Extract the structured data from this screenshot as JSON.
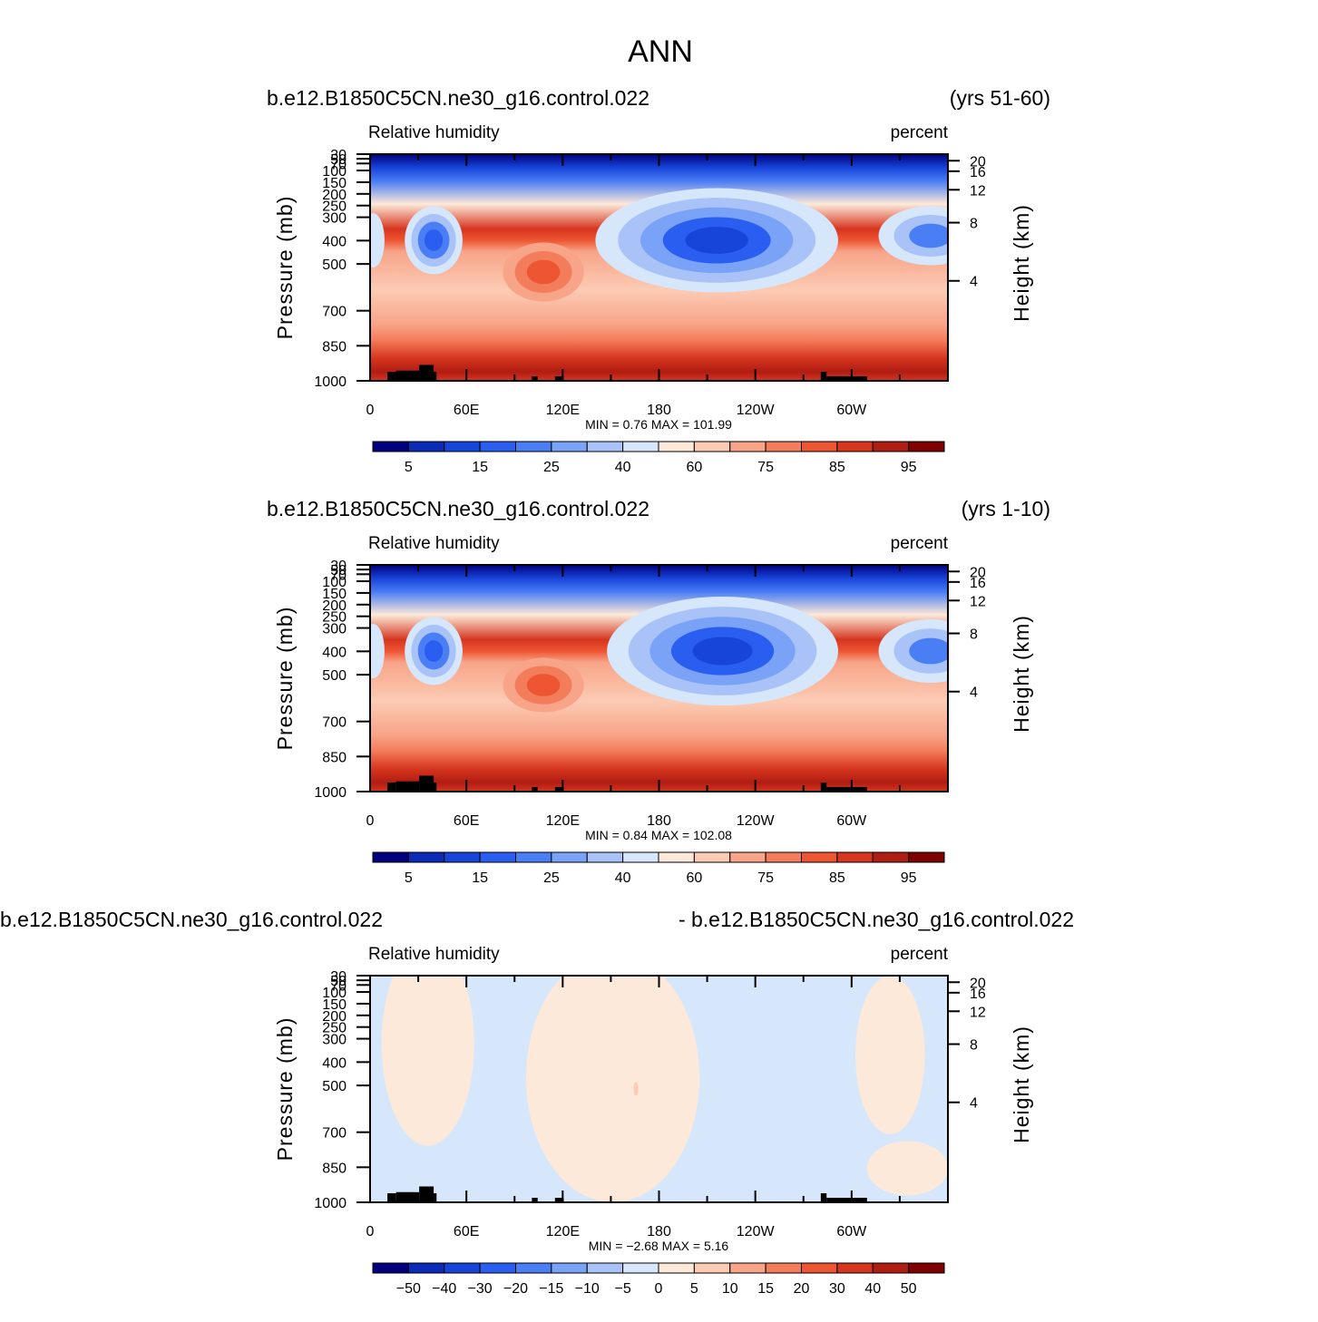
{
  "page_title": "ANN",
  "chart_data": [
    {
      "type": "heatmap",
      "case_title": "b.e12.B1850C5CN.ne30_g16.control.022",
      "period": "(yrs 51-60)",
      "variable_label": "Relative humidity",
      "units_label": "percent",
      "ylabel": "Pressure (mb)",
      "ylabel_right": "Height (km)",
      "x_ticks": [
        "0",
        "60E",
        "120E",
        "180",
        "120W",
        "60W"
      ],
      "y_ticks": [
        "30",
        "50",
        "70",
        "100",
        "150",
        "200",
        "250",
        "300",
        "400",
        "500",
        "700",
        "850",
        "1000"
      ],
      "right_ticks": [
        "20",
        "16",
        "12",
        "8",
        "4"
      ],
      "stats_text": "MIN =    0.76   MAX =  101.99",
      "min": 0.76,
      "max": 101.99,
      "colorbar_labels": [
        "5",
        "15",
        "25",
        "40",
        "60",
        "75",
        "85",
        "95"
      ],
      "colors": [
        "#00007f",
        "#0a2ab8",
        "#1744d9",
        "#2a5ef0",
        "#4a7ef5",
        "#7aa2f6",
        "#a9c3f8",
        "#d6e7fb",
        "#fde9d9",
        "#fccbb4",
        "#f7a488",
        "#f37d5b",
        "#ee5532",
        "#d6351e",
        "#b01d12",
        "#7f0000"
      ],
      "gradient_stops": [
        [
          "0",
          "#00007f"
        ],
        [
          "0.06",
          "#1744d9"
        ],
        [
          "0.12",
          "#4a7ef5"
        ],
        [
          "0.22",
          "#fde9d9"
        ],
        [
          "0.33",
          "#d6351e"
        ],
        [
          "0.38",
          "#ee5532"
        ],
        [
          "0.43",
          "#f7a488"
        ],
        [
          "0.6",
          "#fccbb4"
        ],
        [
          "0.75",
          "#f7a488"
        ],
        [
          "0.82",
          "#f37d5b"
        ],
        [
          "0.9",
          "#d6351e"
        ],
        [
          "0.96",
          "#b01d12"
        ],
        [
          "1",
          "#d6351e"
        ]
      ],
      "anomalies": [
        {
          "cx": 0.11,
          "cy": 0.38,
          "rx": 0.05,
          "ry": 0.15,
          "levels": [
            "#d6e7fb",
            "#a9c3f8",
            "#4a7ef5",
            "#2a5ef0"
          ]
        },
        {
          "cx": 0.6,
          "cy": 0.38,
          "rx": 0.21,
          "ry": 0.23,
          "levels": [
            "#d6e7fb",
            "#a9c3f8",
            "#7aa2f6",
            "#2a5ef0",
            "#1744d9"
          ]
        },
        {
          "cx": 0.97,
          "cy": 0.36,
          "rx": 0.09,
          "ry": 0.13,
          "levels": [
            "#d6e7fb",
            "#a9c3f8",
            "#4a7ef5"
          ]
        },
        {
          "cx": 0.005,
          "cy": 0.38,
          "rx": 0.02,
          "ry": 0.12,
          "levels": [
            "#d6e7fb"
          ]
        },
        {
          "cx": 0.3,
          "cy": 0.52,
          "rx": 0.07,
          "ry": 0.13,
          "levels": [
            "#f7a488",
            "#f37d5b",
            "#ee5532"
          ]
        }
      ]
    },
    {
      "type": "heatmap",
      "case_title": "b.e12.B1850C5CN.ne30_g16.control.022",
      "period": "(yrs 1-10)",
      "variable_label": "Relative humidity",
      "units_label": "percent",
      "ylabel": "Pressure (mb)",
      "ylabel_right": "Height (km)",
      "x_ticks": [
        "0",
        "60E",
        "120E",
        "180",
        "120W",
        "60W"
      ],
      "y_ticks": [
        "30",
        "50",
        "70",
        "100",
        "150",
        "200",
        "250",
        "300",
        "400",
        "500",
        "700",
        "850",
        "1000"
      ],
      "right_ticks": [
        "20",
        "16",
        "12",
        "8",
        "4"
      ],
      "stats_text": "MIN =    0.84   MAX =  102.08",
      "min": 0.84,
      "max": 102.08,
      "colorbar_labels": [
        "5",
        "15",
        "25",
        "40",
        "60",
        "75",
        "85",
        "95"
      ],
      "colors": [
        "#00007f",
        "#0a2ab8",
        "#1744d9",
        "#2a5ef0",
        "#4a7ef5",
        "#7aa2f6",
        "#a9c3f8",
        "#d6e7fb",
        "#fde9d9",
        "#fccbb4",
        "#f7a488",
        "#f37d5b",
        "#ee5532",
        "#d6351e",
        "#b01d12",
        "#7f0000"
      ],
      "gradient_stops": [
        [
          "0",
          "#00007f"
        ],
        [
          "0.06",
          "#1744d9"
        ],
        [
          "0.12",
          "#4a7ef5"
        ],
        [
          "0.22",
          "#fde9d9"
        ],
        [
          "0.33",
          "#d6351e"
        ],
        [
          "0.38",
          "#ee5532"
        ],
        [
          "0.43",
          "#f7a488"
        ],
        [
          "0.6",
          "#fccbb4"
        ],
        [
          "0.75",
          "#f7a488"
        ],
        [
          "0.82",
          "#f37d5b"
        ],
        [
          "0.9",
          "#d6351e"
        ],
        [
          "0.96",
          "#b01d12"
        ],
        [
          "1",
          "#d6351e"
        ]
      ],
      "anomalies": [
        {
          "cx": 0.11,
          "cy": 0.38,
          "rx": 0.05,
          "ry": 0.15,
          "levels": [
            "#d6e7fb",
            "#a9c3f8",
            "#4a7ef5",
            "#2a5ef0"
          ]
        },
        {
          "cx": 0.61,
          "cy": 0.38,
          "rx": 0.2,
          "ry": 0.24,
          "levels": [
            "#d6e7fb",
            "#a9c3f8",
            "#7aa2f6",
            "#2a5ef0",
            "#1744d9"
          ]
        },
        {
          "cx": 0.97,
          "cy": 0.38,
          "rx": 0.09,
          "ry": 0.14,
          "levels": [
            "#d6e7fb",
            "#a9c3f8",
            "#4a7ef5"
          ]
        },
        {
          "cx": 0.005,
          "cy": 0.38,
          "rx": 0.02,
          "ry": 0.12,
          "levels": [
            "#d6e7fb"
          ]
        },
        {
          "cx": 0.3,
          "cy": 0.53,
          "rx": 0.07,
          "ry": 0.12,
          "levels": [
            "#f7a488",
            "#f37d5b",
            "#ee5532"
          ]
        }
      ]
    },
    {
      "type": "heatmap",
      "case_title": "b.e12.B1850C5CN.ne30_g16.control.022",
      "period": "- b.e12.B1850C5CN.ne30_g16.control.022",
      "variable_label": "Relative humidity",
      "units_label": "percent",
      "ylabel": "Pressure (mb)",
      "ylabel_right": "Height (km)",
      "x_ticks": [
        "0",
        "60E",
        "120E",
        "180",
        "120W",
        "60W"
      ],
      "y_ticks": [
        "30",
        "50",
        "70",
        "100",
        "150",
        "200",
        "250",
        "300",
        "400",
        "500",
        "700",
        "850",
        "1000"
      ],
      "right_ticks": [
        "20",
        "16",
        "12",
        "8",
        "4"
      ],
      "stats_text": "MIN =   −2.68   MAX =    5.16",
      "min": -2.68,
      "max": 5.16,
      "colorbar_labels": [
        "−50",
        "−40",
        "−30",
        "−20",
        "−15",
        "−10",
        "−5",
        "0",
        "5",
        "10",
        "15",
        "20",
        "30",
        "40",
        "50"
      ],
      "colors": [
        "#00007f",
        "#0a2ab8",
        "#1744d9",
        "#2a5ef0",
        "#4a7ef5",
        "#7aa2f6",
        "#a9c3f8",
        "#d6e7fb",
        "#fde9d9",
        "#fccbb4",
        "#f7a488",
        "#f37d5b",
        "#ee5532",
        "#d6351e",
        "#b01d12",
        "#7f0000"
      ],
      "gradient_stops": [
        [
          "0",
          "#d6e7fb"
        ],
        [
          "1",
          "#d6e7fb"
        ]
      ],
      "anomalies": [
        {
          "cx": 0.1,
          "cy": 0.3,
          "rx": 0.08,
          "ry": 0.45,
          "levels": [
            "#fde9d9"
          ]
        },
        {
          "cx": 0.42,
          "cy": 0.45,
          "rx": 0.15,
          "ry": 0.55,
          "levels": [
            "#fde9d9"
          ]
        },
        {
          "cx": 0.9,
          "cy": 0.35,
          "rx": 0.06,
          "ry": 0.35,
          "levels": [
            "#fde9d9"
          ]
        },
        {
          "cx": 0.93,
          "cy": 0.85,
          "rx": 0.07,
          "ry": 0.12,
          "levels": [
            "#fde9d9"
          ]
        },
        {
          "cx": 0.46,
          "cy": 0.5,
          "rx": 0.004,
          "ry": 0.03,
          "levels": [
            "#fccbb4"
          ]
        }
      ]
    }
  ]
}
